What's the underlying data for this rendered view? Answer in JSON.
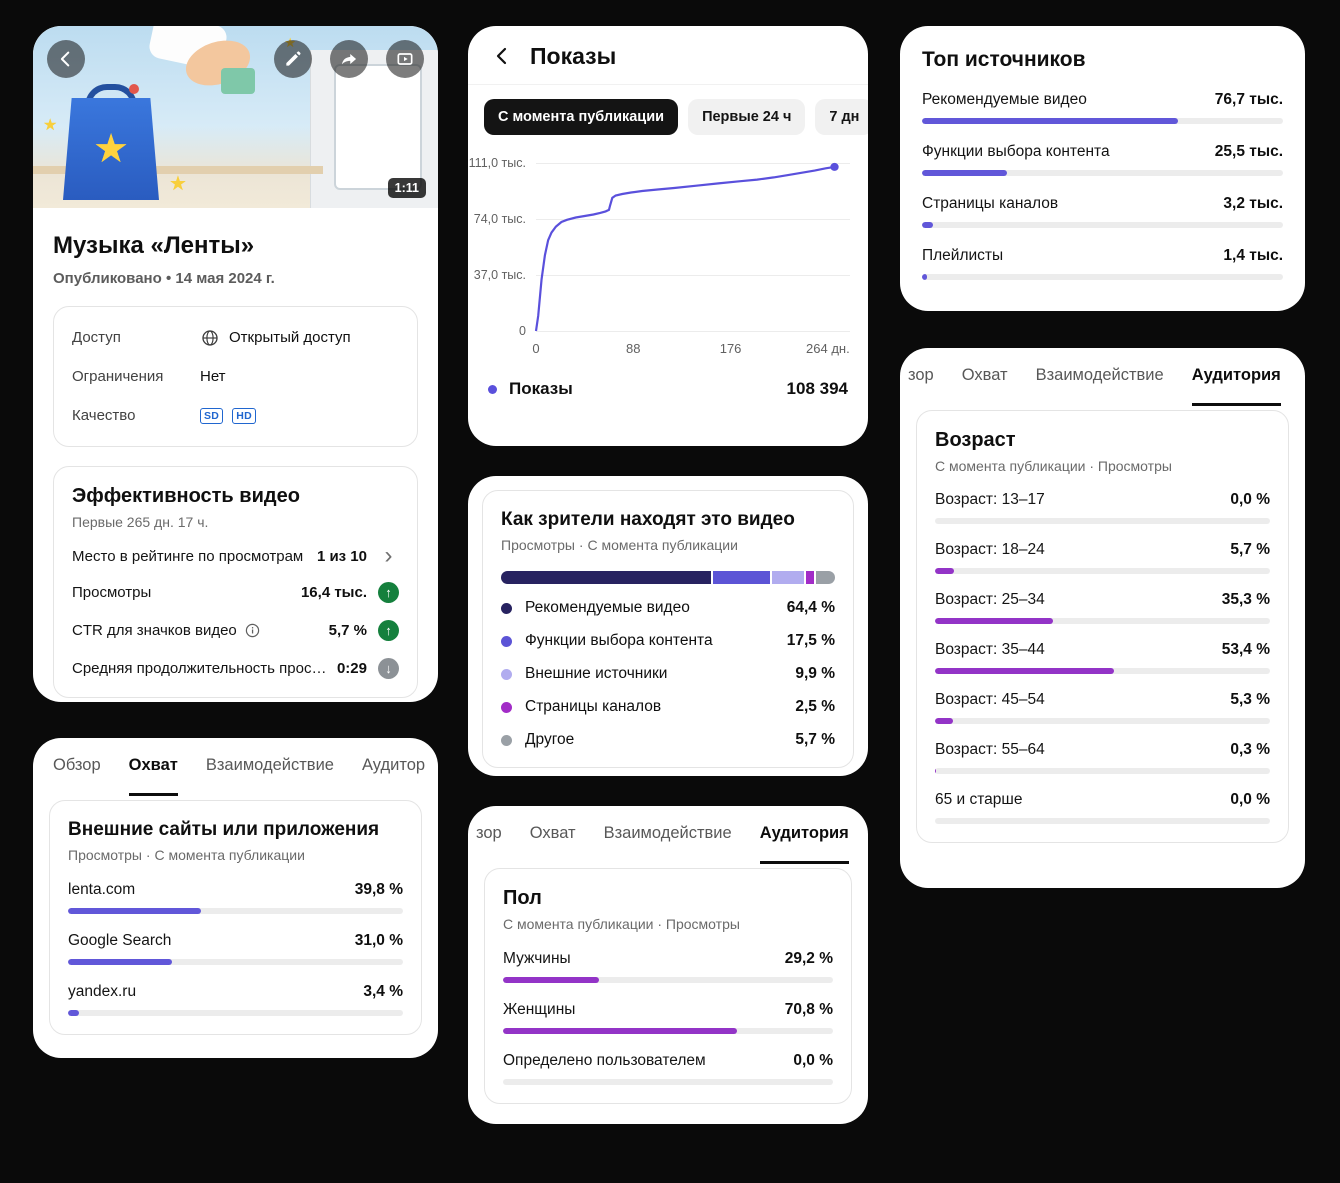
{
  "colors": {
    "line": "#5a50dc",
    "bar_indigo": "#6157d9",
    "bar_purple": "#9334c7",
    "green": "#15803d",
    "gray_trend": "#8c9196"
  },
  "icons": {
    "star": "★",
    "trend_up": "↑",
    "trend_down": "↓",
    "chevron_right": "›"
  },
  "video": {
    "duration": "1:11",
    "title": "Музыка «Ленты»",
    "published": "Опубликовано • 14 мая 2024 г.",
    "access": {
      "rows": [
        {
          "label": "Доступ",
          "value": "Открытый доступ"
        },
        {
          "label": "Ограничения",
          "value": "Нет"
        },
        {
          "label": "Качество",
          "badges": [
            "SD",
            "HD"
          ]
        }
      ]
    },
    "performance": {
      "title": "Эффективность видео",
      "subtitle": "Первые 265 дн. 17 ч.",
      "rows": [
        {
          "label": "Место в рейтинге по просмотрам",
          "value": "1 из 10"
        },
        {
          "label": "Просмотры",
          "value": "16,4 тыс."
        },
        {
          "label": "CTR для значков видео",
          "value": "5,7 %"
        },
        {
          "label": "Средняя продолжительность просмо...",
          "value": "0:29"
        }
      ]
    }
  },
  "reach_tabs": [
    "Обзор",
    "Охват",
    "Взаимодействие",
    "Аудитор"
  ],
  "audience_tabs": [
    "зор",
    "Охват",
    "Взаимодействие",
    "Аудитория"
  ],
  "external_sites": {
    "title": "Внешние сайты или приложения",
    "subtitle": "Просмотры · С момента публикации",
    "rows": [
      {
        "label": "lenta.com",
        "value": "39,8 %",
        "bar": 39.8
      },
      {
        "label": "Google Search",
        "value": "31,0 %",
        "bar": 31.0
      },
      {
        "label": "yandex.ru",
        "value": "3,4 %",
        "bar": 3.4
      }
    ]
  },
  "impressions": {
    "title": "Показы",
    "chips": [
      "С момента публикации",
      "Первые 24 ч",
      "7 дн"
    ],
    "legend_label": "Показы",
    "legend_value": "108 394",
    "chart_data": {
      "type": "line",
      "title": "Показы",
      "x_ticks": [
        "0",
        "88",
        "176",
        "264 дн."
      ],
      "x_tick_pos": [
        0,
        88,
        176,
        264
      ],
      "y_ticks": [
        "111,0 тыс.",
        "74,0 тыс.",
        "37,0 тыс.",
        "0"
      ],
      "y_tick_pos": [
        111,
        74,
        37,
        0
      ],
      "x_max": 284,
      "y_max": 111,
      "unit": "тыс.",
      "points": [
        [
          0,
          0
        ],
        [
          2,
          10
        ],
        [
          5,
          34
        ],
        [
          8,
          50
        ],
        [
          11,
          60
        ],
        [
          14,
          65
        ],
        [
          18,
          69
        ],
        [
          23,
          72
        ],
        [
          28,
          73.5
        ],
        [
          36,
          75
        ],
        [
          44,
          76
        ],
        [
          52,
          77
        ],
        [
          58,
          78
        ],
        [
          63,
          79
        ],
        [
          66,
          80
        ],
        [
          67,
          83
        ],
        [
          69,
          88
        ],
        [
          72,
          89.5
        ],
        [
          78,
          90.5
        ],
        [
          86,
          91.5
        ],
        [
          96,
          92.5
        ],
        [
          110,
          93.5
        ],
        [
          125,
          94.5
        ],
        [
          145,
          96
        ],
        [
          165,
          97.5
        ],
        [
          185,
          99
        ],
        [
          200,
          100
        ],
        [
          215,
          101.5
        ],
        [
          228,
          103
        ],
        [
          240,
          104.5
        ],
        [
          252,
          106
        ],
        [
          262,
          107.5
        ],
        [
          270,
          108.4
        ]
      ]
    }
  },
  "discovery": {
    "title": "Как зрители находят это видео",
    "subtitle": "Просмотры · С момента публикации",
    "items": [
      {
        "label": "Рекомендуемые видео",
        "value": "64,4 %",
        "pct": 64.4,
        "color": "#272260"
      },
      {
        "label": "Функции выбора контента",
        "value": "17,5 %",
        "pct": 17.5,
        "color": "#5c54d6"
      },
      {
        "label": "Внешние источники",
        "value": "9,9 %",
        "pct": 9.9,
        "color": "#b1acef"
      },
      {
        "label": "Страницы каналов",
        "value": "2,5 %",
        "pct": 2.5,
        "color": "#a22cc7"
      },
      {
        "label": "Другое",
        "value": "5,7 %",
        "pct": 5.7,
        "color": "#9aa0a6"
      }
    ]
  },
  "gender": {
    "title": "Пол",
    "subtitle": "С момента публикации · Просмотры",
    "rows": [
      {
        "label": "Мужчины",
        "value": "29,2 %",
        "bar": 29.2
      },
      {
        "label": "Женщины",
        "value": "70,8 %",
        "bar": 70.8
      },
      {
        "label": "Определено пользователем",
        "value": "0,0 %",
        "bar": 0
      }
    ]
  },
  "top_sources": {
    "title": "Топ источников",
    "rows": [
      {
        "label": "Рекомендуемые видео",
        "value": "76,7 тыс.",
        "bar": 70.8
      },
      {
        "label": "Функции выбора контента",
        "value": "25,5 тыс.",
        "bar": 23.5
      },
      {
        "label": "Страницы каналов",
        "value": "3,2 тыс.",
        "bar": 3.0
      },
      {
        "label": "Плейлисты",
        "value": "1,4 тыс.",
        "bar": 1.3
      }
    ]
  },
  "age": {
    "title": "Возраст",
    "subtitle": "С момента публикации · Просмотры",
    "rows": [
      {
        "label": "Возраст: 13–17",
        "value": "0,0 %",
        "bar": 0
      },
      {
        "label": "Возраст: 18–24",
        "value": "5,7 %",
        "bar": 5.7
      },
      {
        "label": "Возраст: 25–34",
        "value": "35,3 %",
        "bar": 35.3
      },
      {
        "label": "Возраст: 35–44",
        "value": "53,4 %",
        "bar": 53.4
      },
      {
        "label": "Возраст: 45–54",
        "value": "5,3 %",
        "bar": 5.3
      },
      {
        "label": "Возраст: 55–64",
        "value": "0,3 %",
        "bar": 0.3
      },
      {
        "label": "65 и старше",
        "value": "0,0 %",
        "bar": 0
      }
    ]
  }
}
